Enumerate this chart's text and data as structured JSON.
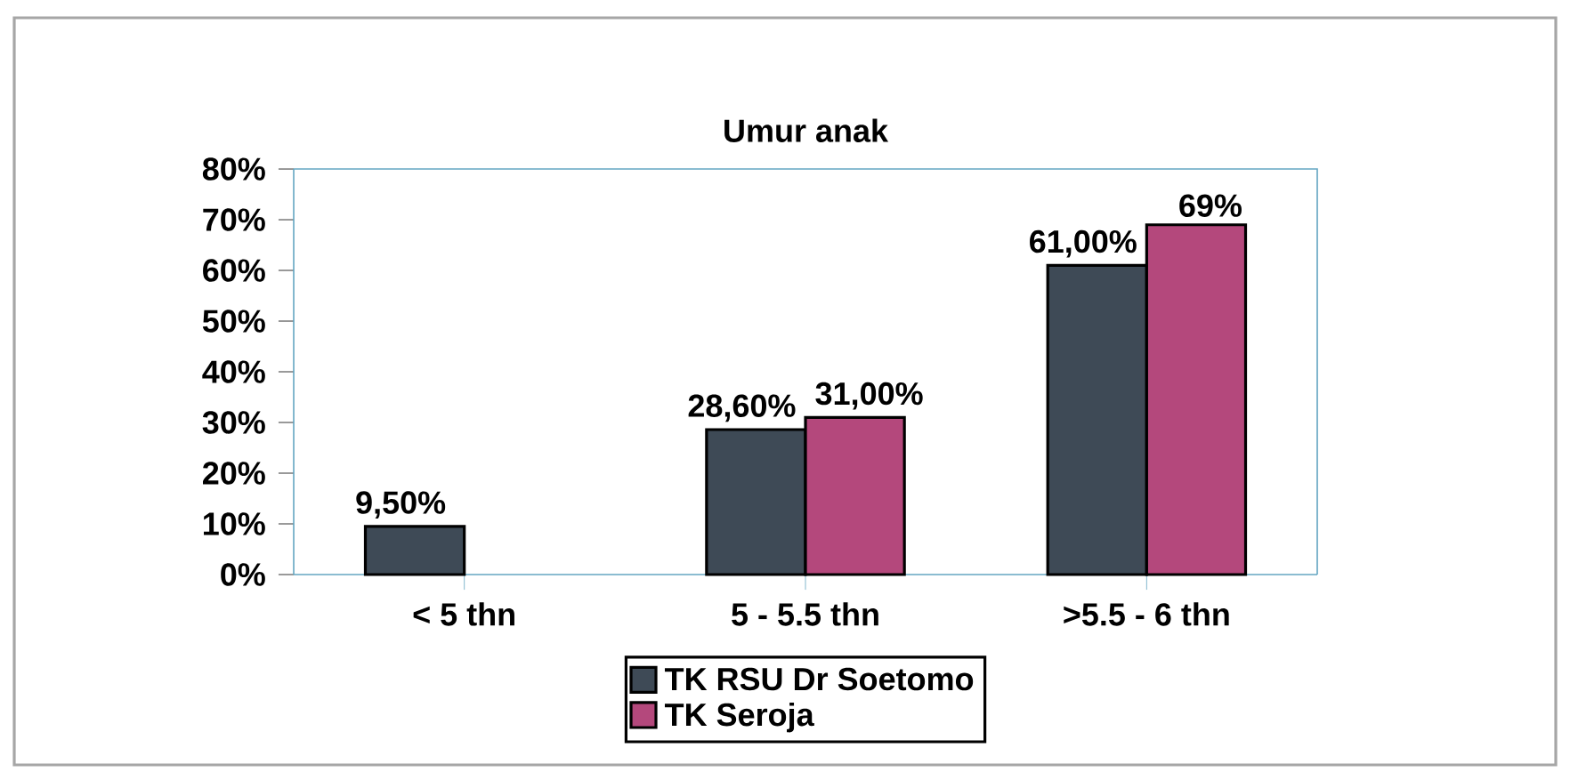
{
  "chart_data": {
    "type": "bar",
    "title": "Umur anak",
    "categories": [
      "< 5 thn",
      "5 - 5.5 thn",
      ">5.5 - 6 thn"
    ],
    "series": [
      {
        "name": "TK RSU Dr Soetomo",
        "color": "#3e4a56",
        "values": [
          9.5,
          28.6,
          61.0
        ],
        "value_labels": [
          "9,50%",
          "28,60%",
          "61,00%"
        ]
      },
      {
        "name": "TK Seroja",
        "color": "#b4487c",
        "values": [
          null,
          31.0,
          69.0
        ],
        "value_labels": [
          null,
          "31,00%",
          "69%"
        ]
      }
    ],
    "ylim": [
      0,
      80
    ],
    "yticks": [
      {
        "value": 0,
        "label": "0%"
      },
      {
        "value": 10,
        "label": "10%"
      },
      {
        "value": 20,
        "label": "20%"
      },
      {
        "value": 30,
        "label": "30%"
      },
      {
        "value": 40,
        "label": "40%"
      },
      {
        "value": 50,
        "label": "50%"
      },
      {
        "value": 60,
        "label": "60%"
      },
      {
        "value": 70,
        "label": "70%"
      },
      {
        "value": 80,
        "label": "80%"
      }
    ],
    "legend": "bottom"
  }
}
